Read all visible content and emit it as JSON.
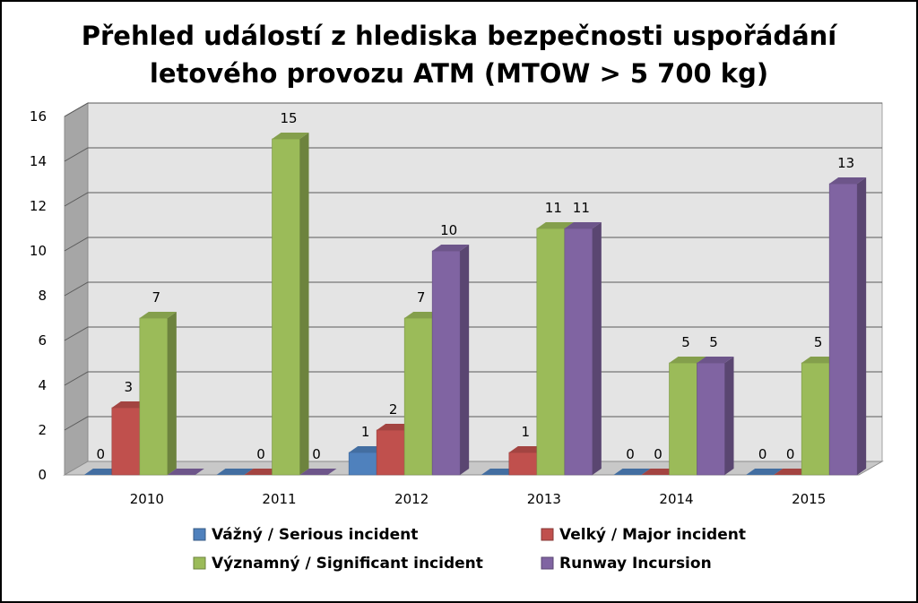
{
  "chart_data": {
    "type": "bar",
    "title": [
      "Přehled událostí z hlediska bezpečnosti uspořádání",
      "letového provozu ATM (MTOW > 5 700 kg)"
    ],
    "categories": [
      "2010",
      "2011",
      "2012",
      "2013",
      "2014",
      "2015"
    ],
    "ylim": [
      0,
      16
    ],
    "yticks": [
      "0",
      "2",
      "4",
      "6",
      "8",
      "10",
      "12",
      "14",
      "16"
    ],
    "series": [
      {
        "name": "Vážný / Serious incident",
        "color": "#4F81BD",
        "values": [
          0,
          0,
          1,
          0,
          0,
          0
        ],
        "labels": [
          "0",
          "",
          "1",
          "",
          "0",
          "0"
        ]
      },
      {
        "name": "Velký / Major incident",
        "color": "#C0504D",
        "values": [
          3,
          0,
          2,
          1,
          0,
          0
        ],
        "labels": [
          "3",
          "0",
          "2",
          "1",
          "0",
          "0"
        ]
      },
      {
        "name": "Významný / Significant incident",
        "color": "#9BBB59",
        "values": [
          7,
          15,
          7,
          11,
          5,
          5
        ],
        "labels": [
          "7",
          "15",
          "7",
          "11",
          "5",
          "5"
        ]
      },
      {
        "name": "Runway Incursion",
        "color": "#8064A2",
        "values": [
          0,
          0,
          10,
          11,
          5,
          13
        ],
        "labels": [
          "",
          "0",
          "10",
          "11",
          "5",
          "13"
        ]
      }
    ],
    "legend_position": "bottom",
    "grid": true
  }
}
